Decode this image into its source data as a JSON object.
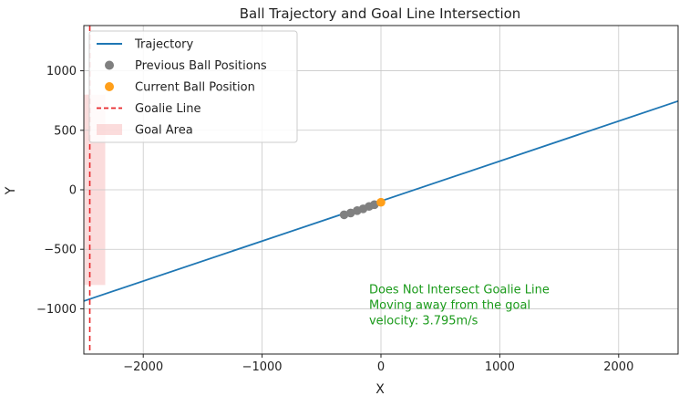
{
  "chart_data": {
    "type": "line",
    "title": "Ball Trajectory and Goal Line Intersection",
    "xlabel": "X",
    "ylabel": "Y",
    "xlim": [
      -2500,
      2500
    ],
    "ylim": [
      -1380,
      1380
    ],
    "xticks": [
      -2000,
      -1000,
      0,
      1000,
      2000
    ],
    "xtick_labels": [
      "−2000",
      "−1000",
      "0",
      "1000",
      "2000"
    ],
    "yticks": [
      -1000,
      -500,
      0,
      500,
      1000
    ],
    "ytick_labels": [
      "−1000",
      "−500",
      "0",
      "500",
      "1000"
    ],
    "grid": true,
    "legend_position": "upper-left",
    "series": [
      {
        "name": "Trajectory",
        "kind": "line",
        "color": "#1f77b4",
        "x": [
          -2500,
          2500
        ],
        "y": [
          -935,
          745
        ]
      },
      {
        "name": "Previous Ball Positions",
        "kind": "scatter",
        "color": "#808080",
        "x": [
          -310,
          -255,
          -200,
          -150,
          -100,
          -55
        ],
        "y": [
          -210,
          -195,
          -175,
          -160,
          -140,
          -125
        ]
      },
      {
        "name": "Current Ball Position",
        "kind": "scatter",
        "color": "#ff9f1a",
        "x": [
          0
        ],
        "y": [
          -105
        ]
      },
      {
        "name": "Goalie Line",
        "kind": "vline",
        "color": "#e8262a",
        "x": -2450
      },
      {
        "name": "Goal Area",
        "kind": "band",
        "color": "#f9c4c4",
        "x0": -2500,
        "x1": -2320,
        "y0": -800,
        "y1": 800
      }
    ],
    "annotations": [
      {
        "text": "Does Not Intersect Goalie Line",
        "x": -100,
        "y": -870,
        "color": "#1a9a1a"
      },
      {
        "text": "Moving away from the goal",
        "x": -100,
        "y": -1000,
        "color": "#1a9a1a"
      },
      {
        "text": "velocity: 3.795m/s",
        "x": -100,
        "y": -1130,
        "color": "#1a9a1a"
      }
    ]
  }
}
